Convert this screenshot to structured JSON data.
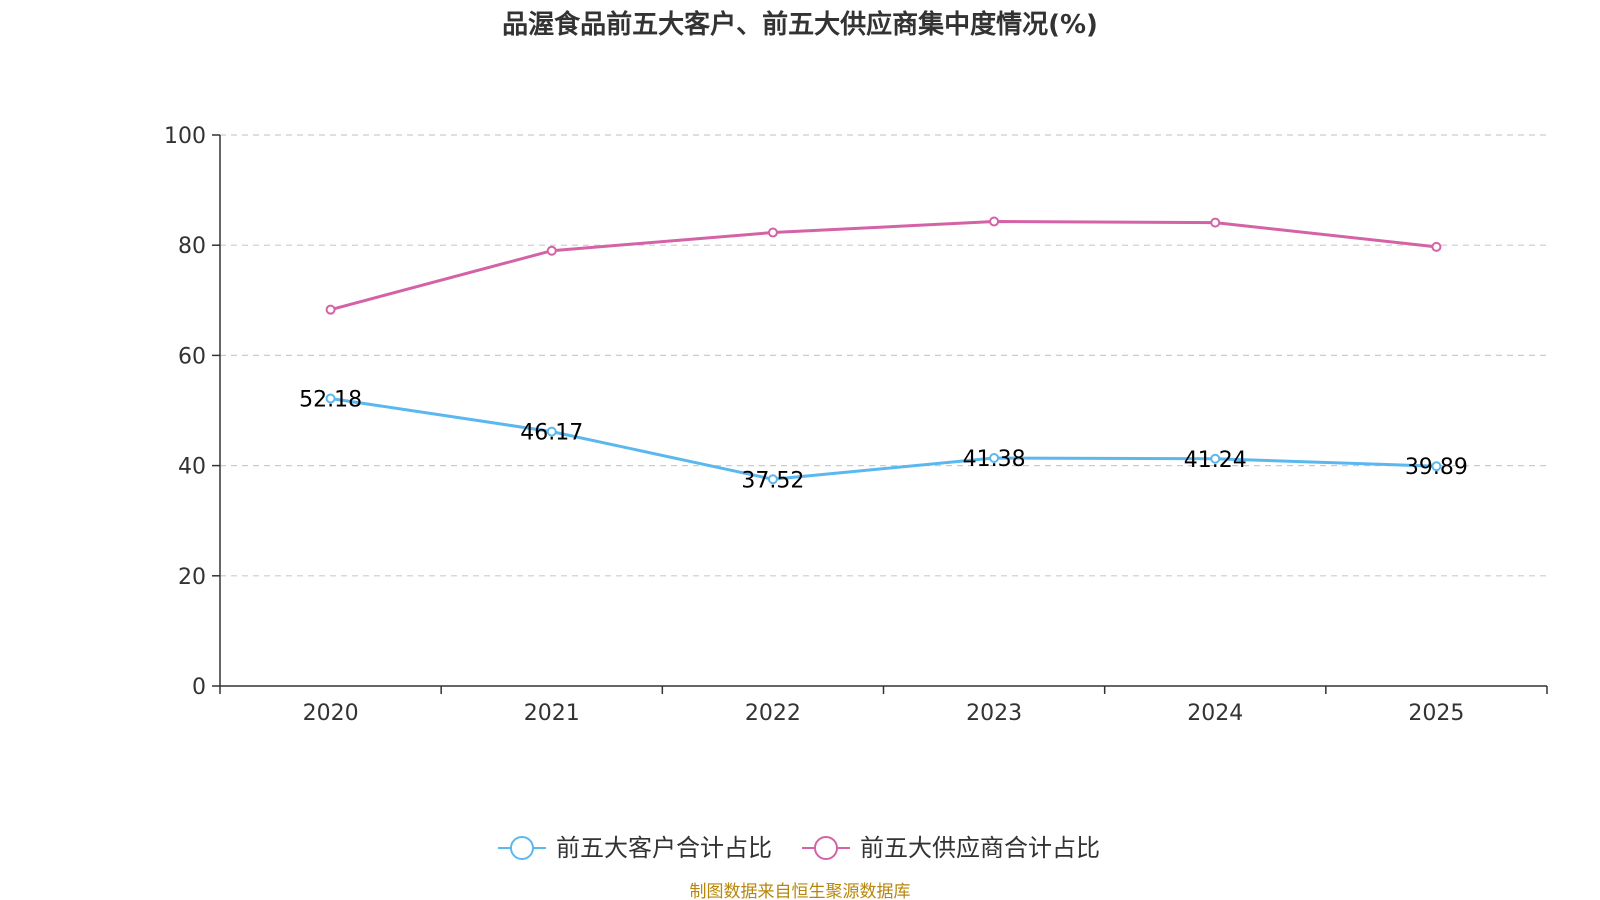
{
  "chart_data": {
    "type": "line",
    "title": "品渥食品前五大客户、前五大供应商集中度情况(%)",
    "categories": [
      "2020",
      "2021",
      "2022",
      "2023",
      "2024",
      "2025"
    ],
    "ylim": [
      0,
      100
    ],
    "yticks": [
      0,
      20,
      40,
      60,
      80,
      100
    ],
    "grid": true,
    "legend_position": "bottom",
    "series": [
      {
        "name": "前五大客户合计占比",
        "color": "#5bb8ef",
        "values": [
          52.18,
          46.17,
          37.52,
          41.38,
          41.24,
          39.89
        ],
        "labels": [
          "52.18",
          "46.17",
          "37.52",
          "41.38",
          "41.24",
          "39.89"
        ],
        "show_labels": true
      },
      {
        "name": "前五大供应商合计占比",
        "color": "#d462a6",
        "values": [
          68.3,
          79.0,
          82.3,
          84.3,
          84.1,
          79.7
        ],
        "show_labels": false
      }
    ]
  },
  "source": "制图数据来自恒生聚源数据库"
}
